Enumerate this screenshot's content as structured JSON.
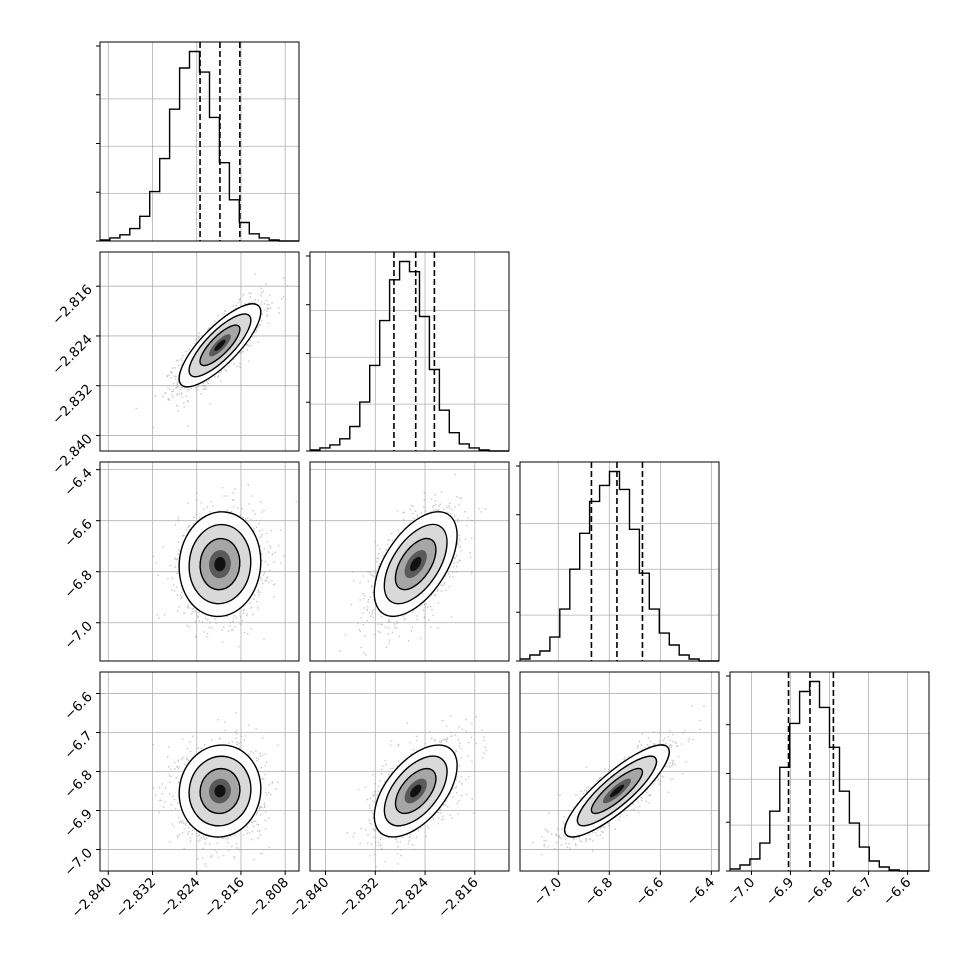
{
  "chart_data": {
    "type": "corner",
    "grid": true,
    "parameters": [
      {
        "range": [
          -2.8415,
          -2.8055
        ],
        "ticks": [
          -2.84,
          -2.832,
          -2.824,
          -2.816,
          -2.808
        ],
        "tick_labels": [
          "−2.840",
          "−2.832",
          "−2.824",
          "−2.816",
          "−2.808"
        ],
        "quantiles": [
          -2.8234,
          -2.8198,
          -2.8162
        ],
        "hist_edges_from": -2.8415,
        "hist_bin_width": 0.0018,
        "hist_counts": [
          0.5,
          1.5,
          3,
          6,
          12,
          24,
          40,
          64,
          84,
          92,
          82,
          60,
          38,
          20,
          9,
          3.5,
          1.5,
          0.5,
          0,
          0
        ]
      },
      {
        "range": [
          -2.8425,
          -2.8105
        ],
        "ticks": [
          -2.84,
          -2.832,
          -2.824,
          -2.816
        ],
        "tick_labels": [
          "−2.840",
          "−2.832",
          "−2.824",
          "−2.816"
        ],
        "quantiles": [
          -2.829,
          -2.8255,
          -2.8225
        ],
        "hist_edges_from": -2.8425,
        "hist_bin_width": 0.0016,
        "hist_counts": [
          0.5,
          1.5,
          3,
          6,
          12,
          24,
          42,
          64,
          84,
          93,
          88,
          66,
          40,
          20,
          9,
          3.5,
          1.5,
          0.5,
          0,
          0
        ]
      },
      {
        "range": [
          -7.15,
          -6.37
        ],
        "ticks": [
          -7.0,
          -6.8,
          -6.6,
          -6.4
        ],
        "tick_labels": [
          "−7.0",
          "−6.8",
          "−6.6",
          "−6.4"
        ],
        "quantiles": [
          -6.87,
          -6.77,
          -6.67
        ],
        "hist_edges_from": -7.15,
        "hist_bin_width": 0.039,
        "hist_counts": [
          1,
          3,
          5,
          12,
          26,
          46,
          64,
          80,
          88,
          95,
          86,
          66,
          44,
          26,
          14,
          8,
          3,
          1,
          0,
          0
        ]
      },
      {
        "range": [
          -7.055,
          -6.545
        ],
        "ticks": [
          -7.0,
          -6.9,
          -6.8,
          -6.7,
          -6.6
        ],
        "tick_labels": [
          "−7.0",
          "−6.9",
          "−6.8",
          "−6.7",
          "−6.6"
        ],
        "quantiles": [
          -6.905,
          -6.85,
          -6.79
        ],
        "hist_edges_from": -7.055,
        "hist_bin_width": 0.0255,
        "hist_counts": [
          1,
          3,
          6,
          14,
          30,
          52,
          74,
          90,
          95,
          82,
          62,
          40,
          24,
          12,
          5,
          2,
          0.5,
          0,
          0,
          0
        ]
      }
    ],
    "pairs": [
      {
        "x": 0,
        "y": 1,
        "corr": 0.8
      },
      {
        "x": 0,
        "y": 2,
        "corr": 0.05
      },
      {
        "x": 1,
        "y": 2,
        "corr": 0.55
      },
      {
        "x": 0,
        "y": 3,
        "corr": 0.05
      },
      {
        "x": 1,
        "y": 3,
        "corr": 0.55
      },
      {
        "x": 2,
        "y": 3,
        "corr": 0.85
      }
    ]
  }
}
